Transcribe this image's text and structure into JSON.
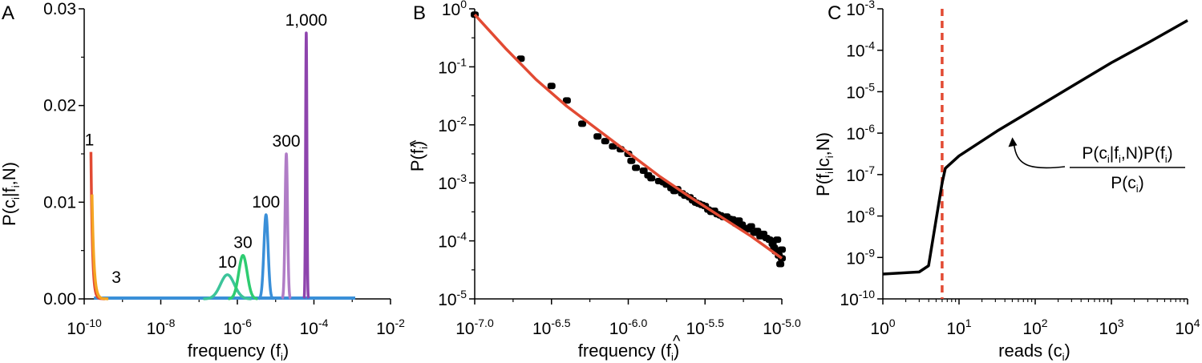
{
  "chart_data": [
    {
      "panel": "A",
      "type": "line",
      "title": "",
      "xlabel": "frequency (f",
      "xlabel_sub": "i",
      "xlabel_tail": ")",
      "ylabel": "P(c",
      "ylabel_sub": "i",
      "ylabel_tail": "|f",
      "ylabel_sub2": "i",
      "ylabel_tail2": ",N)",
      "x_scale": "log",
      "xlim": [
        1e-10,
        0.01
      ],
      "ylim": [
        0,
        0.03
      ],
      "xticks": [
        {
          "value": 1e-10,
          "base": "10",
          "exp": "-10"
        },
        {
          "value": 1e-08,
          "base": "10",
          "exp": "-8"
        },
        {
          "value": 1e-06,
          "base": "10",
          "exp": "-6"
        },
        {
          "value": 0.0001,
          "base": "10",
          "exp": "-4"
        },
        {
          "value": 0.01,
          "base": "10",
          "exp": "-2"
        }
      ],
      "yticks": [
        {
          "value": 0,
          "label": "0.00"
        },
        {
          "value": 0.01,
          "label": "0.01"
        },
        {
          "value": 0.02,
          "label": "0.02"
        },
        {
          "value": 0.03,
          "label": "0.03"
        }
      ],
      "series": [
        {
          "label": "1",
          "color": "#e24a33",
          "kind": "decay",
          "start": 1.5e-10,
          "peak": 0.0152,
          "end": 2.6e-10
        },
        {
          "label": "3",
          "color": "#f5a623",
          "kind": "decay",
          "start": 1.6e-10,
          "peak": 0.0108,
          "end": 3.2e-10
        },
        {
          "label": "10",
          "color": "#3cc49a",
          "kind": "peak",
          "center": 5.5e-07,
          "peak": 0.0025,
          "width_dec": 0.18
        },
        {
          "label": "30",
          "color": "#2ecc71",
          "kind": "peak",
          "center": 1.4e-06,
          "peak": 0.0045,
          "width_dec": 0.11
        },
        {
          "label": "100",
          "color": "#3a8fd8",
          "kind": "peak",
          "center": 5.6e-06,
          "peak": 0.0087,
          "width_dec": 0.055
        },
        {
          "label": "300",
          "color": "#b07cc6",
          "kind": "peak",
          "center": 1.9e-05,
          "peak": 0.015,
          "width_dec": 0.032
        },
        {
          "label": "1,000",
          "color": "#8e44ad",
          "kind": "peak",
          "center": 6.3e-05,
          "peak": 0.0275,
          "width_dec": 0.017
        }
      ],
      "baseline": {
        "color": "#3a8fd8",
        "x_start": 1.8e-10,
        "x_end": 0.0012
      }
    },
    {
      "panel": "B",
      "type": "scatter",
      "title": "",
      "xlabel": "frequency (",
      "xlabel_hat": "f",
      "xlabel_sub": "i",
      "xlabel_tail": ")",
      "ylabel": "P",
      "ylabel_paren": "(f",
      "ylabel_sub": "i",
      "ylabel_tail": ")",
      "x_scale": "log",
      "y_scale": "log",
      "xlim_log10": [
        -7.0,
        -5.0
      ],
      "ylim_log10": [
        -5,
        0
      ],
      "xticks": [
        {
          "value": -7.0,
          "base": "10",
          "exp": "-7.0"
        },
        {
          "value": -6.5,
          "base": "10",
          "exp": "-6.5"
        },
        {
          "value": -6.0,
          "base": "10",
          "exp": "-6.0"
        },
        {
          "value": -5.5,
          "base": "10",
          "exp": "-5.5"
        },
        {
          "value": -5.0,
          "base": "10",
          "exp": "-5.0"
        }
      ],
      "yticks": [
        {
          "value": 0,
          "base": "10",
          "exp": "0"
        },
        {
          "value": -1,
          "base": "10",
          "exp": "-1"
        },
        {
          "value": -2,
          "base": "10",
          "exp": "-2"
        },
        {
          "value": -3,
          "base": "10",
          "exp": "-3"
        },
        {
          "value": -4,
          "base": "10",
          "exp": "-4"
        },
        {
          "value": -5,
          "base": "10",
          "exp": "-5"
        }
      ],
      "points_log10": [
        [
          -7.0,
          -0.1
        ],
        [
          -6.7,
          -0.86
        ],
        [
          -6.5,
          -1.33
        ],
        [
          -6.4,
          -1.58
        ],
        [
          -6.3,
          -1.98
        ],
        [
          -6.2,
          -2.2
        ],
        [
          -6.15,
          -2.28
        ],
        [
          -6.1,
          -2.37
        ],
        [
          -6.05,
          -2.42
        ],
        [
          -6.0,
          -2.5
        ],
        [
          -5.98,
          -2.62
        ],
        [
          -5.95,
          -2.74
        ],
        [
          -5.9,
          -2.79
        ],
        [
          -5.87,
          -2.87
        ],
        [
          -5.85,
          -2.92
        ],
        [
          -5.8,
          -2.97
        ],
        [
          -5.77,
          -2.99
        ],
        [
          -5.75,
          -3.03
        ],
        [
          -5.72,
          -3.09
        ],
        [
          -5.7,
          -3.14
        ],
        [
          -5.68,
          -3.11
        ],
        [
          -5.65,
          -3.18
        ],
        [
          -5.63,
          -3.22
        ],
        [
          -5.6,
          -3.25
        ],
        [
          -5.58,
          -3.3
        ],
        [
          -5.56,
          -3.34
        ],
        [
          -5.54,
          -3.36
        ],
        [
          -5.52,
          -3.38
        ],
        [
          -5.5,
          -3.4
        ],
        [
          -5.48,
          -3.46
        ],
        [
          -5.46,
          -3.5
        ],
        [
          -5.44,
          -3.48
        ],
        [
          -5.42,
          -3.54
        ],
        [
          -5.4,
          -3.56
        ],
        [
          -5.38,
          -3.59
        ],
        [
          -5.36,
          -3.58
        ],
        [
          -5.34,
          -3.62
        ],
        [
          -5.32,
          -3.63
        ],
        [
          -5.3,
          -3.7
        ],
        [
          -5.28,
          -3.65
        ],
        [
          -5.26,
          -3.72
        ],
        [
          -5.24,
          -3.78
        ],
        [
          -5.22,
          -3.8
        ],
        [
          -5.2,
          -3.75
        ],
        [
          -5.18,
          -3.86
        ],
        [
          -5.16,
          -3.83
        ],
        [
          -5.14,
          -3.92
        ],
        [
          -5.12,
          -3.88
        ],
        [
          -5.1,
          -3.95
        ],
        [
          -5.08,
          -3.98
        ],
        [
          -5.06,
          -4.05
        ],
        [
          -5.05,
          -4.12
        ],
        [
          -5.04,
          -4.18
        ],
        [
          -5.03,
          -3.98
        ],
        [
          -5.02,
          -4.25
        ],
        [
          -5.01,
          -4.4
        ],
        [
          -5.0,
          -4.15
        ],
        [
          -5.0,
          -4.3
        ]
      ],
      "fit_log10": [
        [
          -7.0,
          -0.1
        ],
        [
          -6.8,
          -0.68
        ],
        [
          -6.6,
          -1.22
        ],
        [
          -6.4,
          -1.68
        ],
        [
          -6.2,
          -2.08
        ],
        [
          -6.0,
          -2.48
        ],
        [
          -5.8,
          -2.88
        ],
        [
          -5.6,
          -3.24
        ],
        [
          -5.4,
          -3.58
        ],
        [
          -5.2,
          -3.92
        ],
        [
          -5.0,
          -4.3
        ]
      ],
      "fit_color": "#e24a33",
      "point_color": "#000000"
    },
    {
      "panel": "C",
      "type": "line",
      "title": "",
      "xlabel": "reads (c",
      "xlabel_sub": "i",
      "xlabel_tail": ")",
      "ylabel": "P(f",
      "ylabel_sub": "i",
      "ylabel_tail": "|c",
      "ylabel_sub2": "i",
      "ylabel_tail2": ",N)",
      "x_scale": "log",
      "y_scale": "log",
      "xlim_log10": [
        0,
        4
      ],
      "ylim_log10": [
        -10,
        -3
      ],
      "xticks": [
        {
          "value": 0,
          "base": "10",
          "exp": "0"
        },
        {
          "value": 1,
          "base": "10",
          "exp": "1"
        },
        {
          "value": 2,
          "base": "10",
          "exp": "2"
        },
        {
          "value": 3,
          "base": "10",
          "exp": "3"
        },
        {
          "value": 4,
          "base": "10",
          "exp": "4"
        }
      ],
      "yticks": [
        {
          "value": -3,
          "base": "10",
          "exp": "-3"
        },
        {
          "value": -4,
          "base": "10",
          "exp": "-4"
        },
        {
          "value": -5,
          "base": "10",
          "exp": "-5"
        },
        {
          "value": -6,
          "base": "10",
          "exp": "-6"
        },
        {
          "value": -7,
          "base": "10",
          "exp": "-7"
        },
        {
          "value": -8,
          "base": "10",
          "exp": "-8"
        },
        {
          "value": -9,
          "base": "10",
          "exp": "-9"
        },
        {
          "value": -10,
          "base": "10",
          "exp": "-10"
        }
      ],
      "line_log10": [
        [
          0.0,
          -9.4
        ],
        [
          0.477,
          -9.35
        ],
        [
          0.6,
          -9.2
        ],
        [
          0.778,
          -7.2
        ],
        [
          0.82,
          -6.85
        ],
        [
          1.0,
          -6.55
        ],
        [
          1.5,
          -5.95
        ],
        [
          2.0,
          -5.4
        ],
        [
          2.5,
          -4.85
        ],
        [
          3.0,
          -4.3
        ],
        [
          3.5,
          -3.8
        ],
        [
          4.0,
          -3.28
        ]
      ],
      "line_color": "#000000",
      "threshold_log10x": 0.778,
      "threshold_color": "#e24a33",
      "annotation": {
        "num_a": "P(c",
        "num_sub1": "i",
        "num_b": "|f",
        "num_sub2": "i",
        "num_c": ",N)P(f",
        "num_sub3": "i",
        "num_d": ")",
        "den_a": "P(c",
        "den_sub": "i",
        "den_b": ")",
        "arrow_target_log10": [
          1.7,
          -6.1
        ]
      }
    }
  ],
  "panel_letters": [
    "A",
    "B",
    "C"
  ]
}
